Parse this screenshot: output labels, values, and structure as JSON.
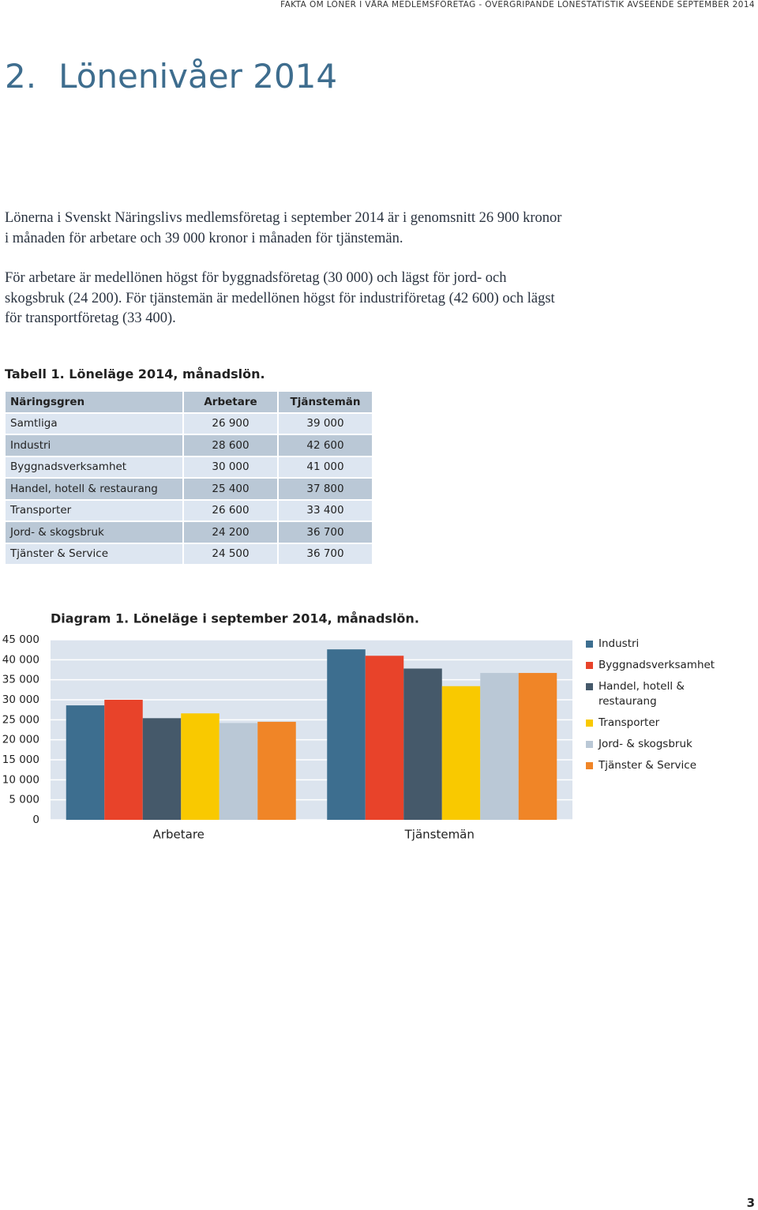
{
  "header": {
    "running_title": "FAKTA OM LÖNER I VÅRA MEDLEMSFÖRETAG - ÖVERGRIPANDE LÖNESTATISTIK AVSEENDE SEPTEMBER 2014"
  },
  "section": {
    "number": "2.",
    "title": "Lönenivåer 2014"
  },
  "paragraphs": [
    "Lönerna i Svenskt Näringslivs medlemsföretag i september 2014 är i genomsnitt 26 900 kronor i månaden för arbetare och 39 000 kronor i månaden för tjänstemän.",
    "För arbetare är medellönen högst för byggnadsföretag (30 000) och lägst för jord- och skogsbruk (24 200). För tjänstemän är medellönen högst för industriföretag (42 600) och lägst för transportföretag (33 400)."
  ],
  "table": {
    "caption": "Tabell 1. Löneläge 2014, månadslön.",
    "columns": [
      "Näringsgren",
      "Arbetare",
      "Tjänstemän"
    ],
    "rows": [
      [
        "Samtliga",
        "26 900",
        "39 000"
      ],
      [
        "Industri",
        "28 600",
        "42 600"
      ],
      [
        "Byggnadsverksamhet",
        "30 000",
        "41 000"
      ],
      [
        "Handel, hotell & restaurang",
        "25 400",
        "37 800"
      ],
      [
        "Transporter",
        "26 600",
        "33 400"
      ],
      [
        "Jord- & skogsbruk",
        "24 200",
        "36 700"
      ],
      [
        "Tjänster & Service",
        "24 500",
        "36 700"
      ]
    ]
  },
  "chart_data": {
    "type": "bar",
    "title": "Diagram 1. Löneläge i september 2014, månadslön.",
    "categories": [
      "Arbetare",
      "Tjänstemän"
    ],
    "series": [
      {
        "name": "Industri",
        "color": "#3d6e8f",
        "values": [
          28600,
          42600
        ]
      },
      {
        "name": "Byggnadsverksamhet",
        "color": "#e8432a",
        "values": [
          30000,
          41000
        ]
      },
      {
        "name": "Handel, hotell & restaurang",
        "color": "#45596a",
        "values": [
          25400,
          37800
        ]
      },
      {
        "name": "Transporter",
        "color": "#f9c900",
        "values": [
          26600,
          33400
        ]
      },
      {
        "name": "Jord- & skogsbruk",
        "color": "#bac8d6",
        "values": [
          24200,
          36700
        ]
      },
      {
        "name": "Tjänster & Service",
        "color": "#f08527",
        "values": [
          24500,
          36700
        ]
      }
    ],
    "ylim": [
      0,
      45000
    ],
    "yticks": [
      0,
      {
        "value": 5000,
        "label": "5 000"
      },
      {
        "value": 10000,
        "label": "10 000"
      },
      {
        "value": 15000,
        "label": "15 000"
      },
      {
        "value": 20000,
        "label": "20 000"
      },
      {
        "value": 25000,
        "label": "25 000"
      },
      {
        "value": 30000,
        "label": "30 000"
      },
      {
        "value": 35000,
        "label": "35 000"
      },
      {
        "value": 40000,
        "label": "40 000"
      },
      {
        "value": 45000,
        "label": "45 000"
      }
    ],
    "grid": true,
    "legend": "right"
  },
  "page_number": "3"
}
